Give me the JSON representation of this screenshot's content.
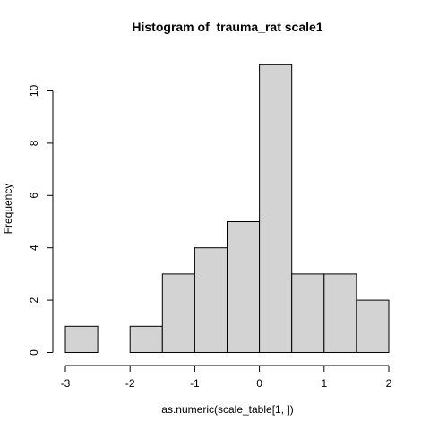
{
  "chart_data": {
    "type": "bar",
    "title": "Histogram of  trauma_rat scale1",
    "xlabel": "as.numeric(scale_table[1, ])",
    "ylabel": "Frequency",
    "bin_edges": [
      -3,
      -2.5,
      -2,
      -1.5,
      -1,
      -0.5,
      0,
      0.5,
      1,
      1.5,
      2
    ],
    "values": [
      1,
      0,
      1,
      3,
      4,
      5,
      11,
      3,
      3,
      2
    ],
    "xlim": [
      -3,
      2
    ],
    "ylim": [
      0,
      10
    ],
    "x_ticks": [
      "-3",
      "-2",
      "-1",
      "0",
      "1",
      "2"
    ],
    "y_ticks": [
      "0",
      "2",
      "4",
      "6",
      "8",
      "10"
    ],
    "grid": false,
    "colors": {
      "bar_fill": "#d3d3d3",
      "bar_stroke": "#000000"
    }
  }
}
